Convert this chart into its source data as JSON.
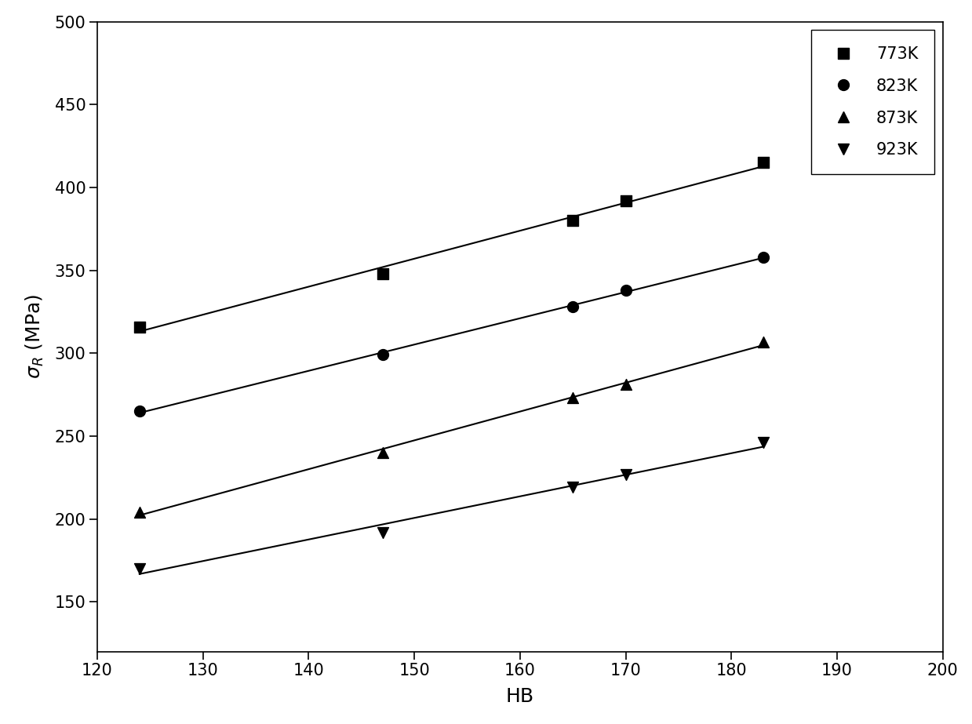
{
  "series": [
    {
      "label": "773K",
      "marker": "s",
      "hb": [
        124,
        147,
        165,
        170,
        183
      ],
      "sigma": [
        316,
        348,
        380,
        392,
        415
      ]
    },
    {
      "label": "823K",
      "marker": "o",
      "hb": [
        124,
        147,
        165,
        170,
        183
      ],
      "sigma": [
        265,
        299,
        328,
        338,
        358
      ]
    },
    {
      "label": "873K",
      "marker": "^",
      "hb": [
        124,
        147,
        165,
        170,
        183
      ],
      "sigma": [
        204,
        240,
        273,
        281,
        307
      ]
    },
    {
      "label": "923K",
      "marker": "v",
      "hb": [
        124,
        147,
        165,
        170,
        183
      ],
      "sigma": [
        170,
        192,
        219,
        227,
        246
      ]
    }
  ],
  "xlim": [
    120,
    200
  ],
  "ylim": [
    120,
    500
  ],
  "xticks": [
    120,
    130,
    140,
    150,
    160,
    170,
    180,
    190,
    200
  ],
  "yticks": [
    150,
    200,
    250,
    300,
    350,
    400,
    450,
    500
  ],
  "xlabel": "HB",
  "color": "#000000",
  "bg_color": "#ffffff",
  "marker_size": 10,
  "line_width": 1.5,
  "legend_fontsize": 15,
  "axis_label_fontsize": 18,
  "tick_fontsize": 15
}
